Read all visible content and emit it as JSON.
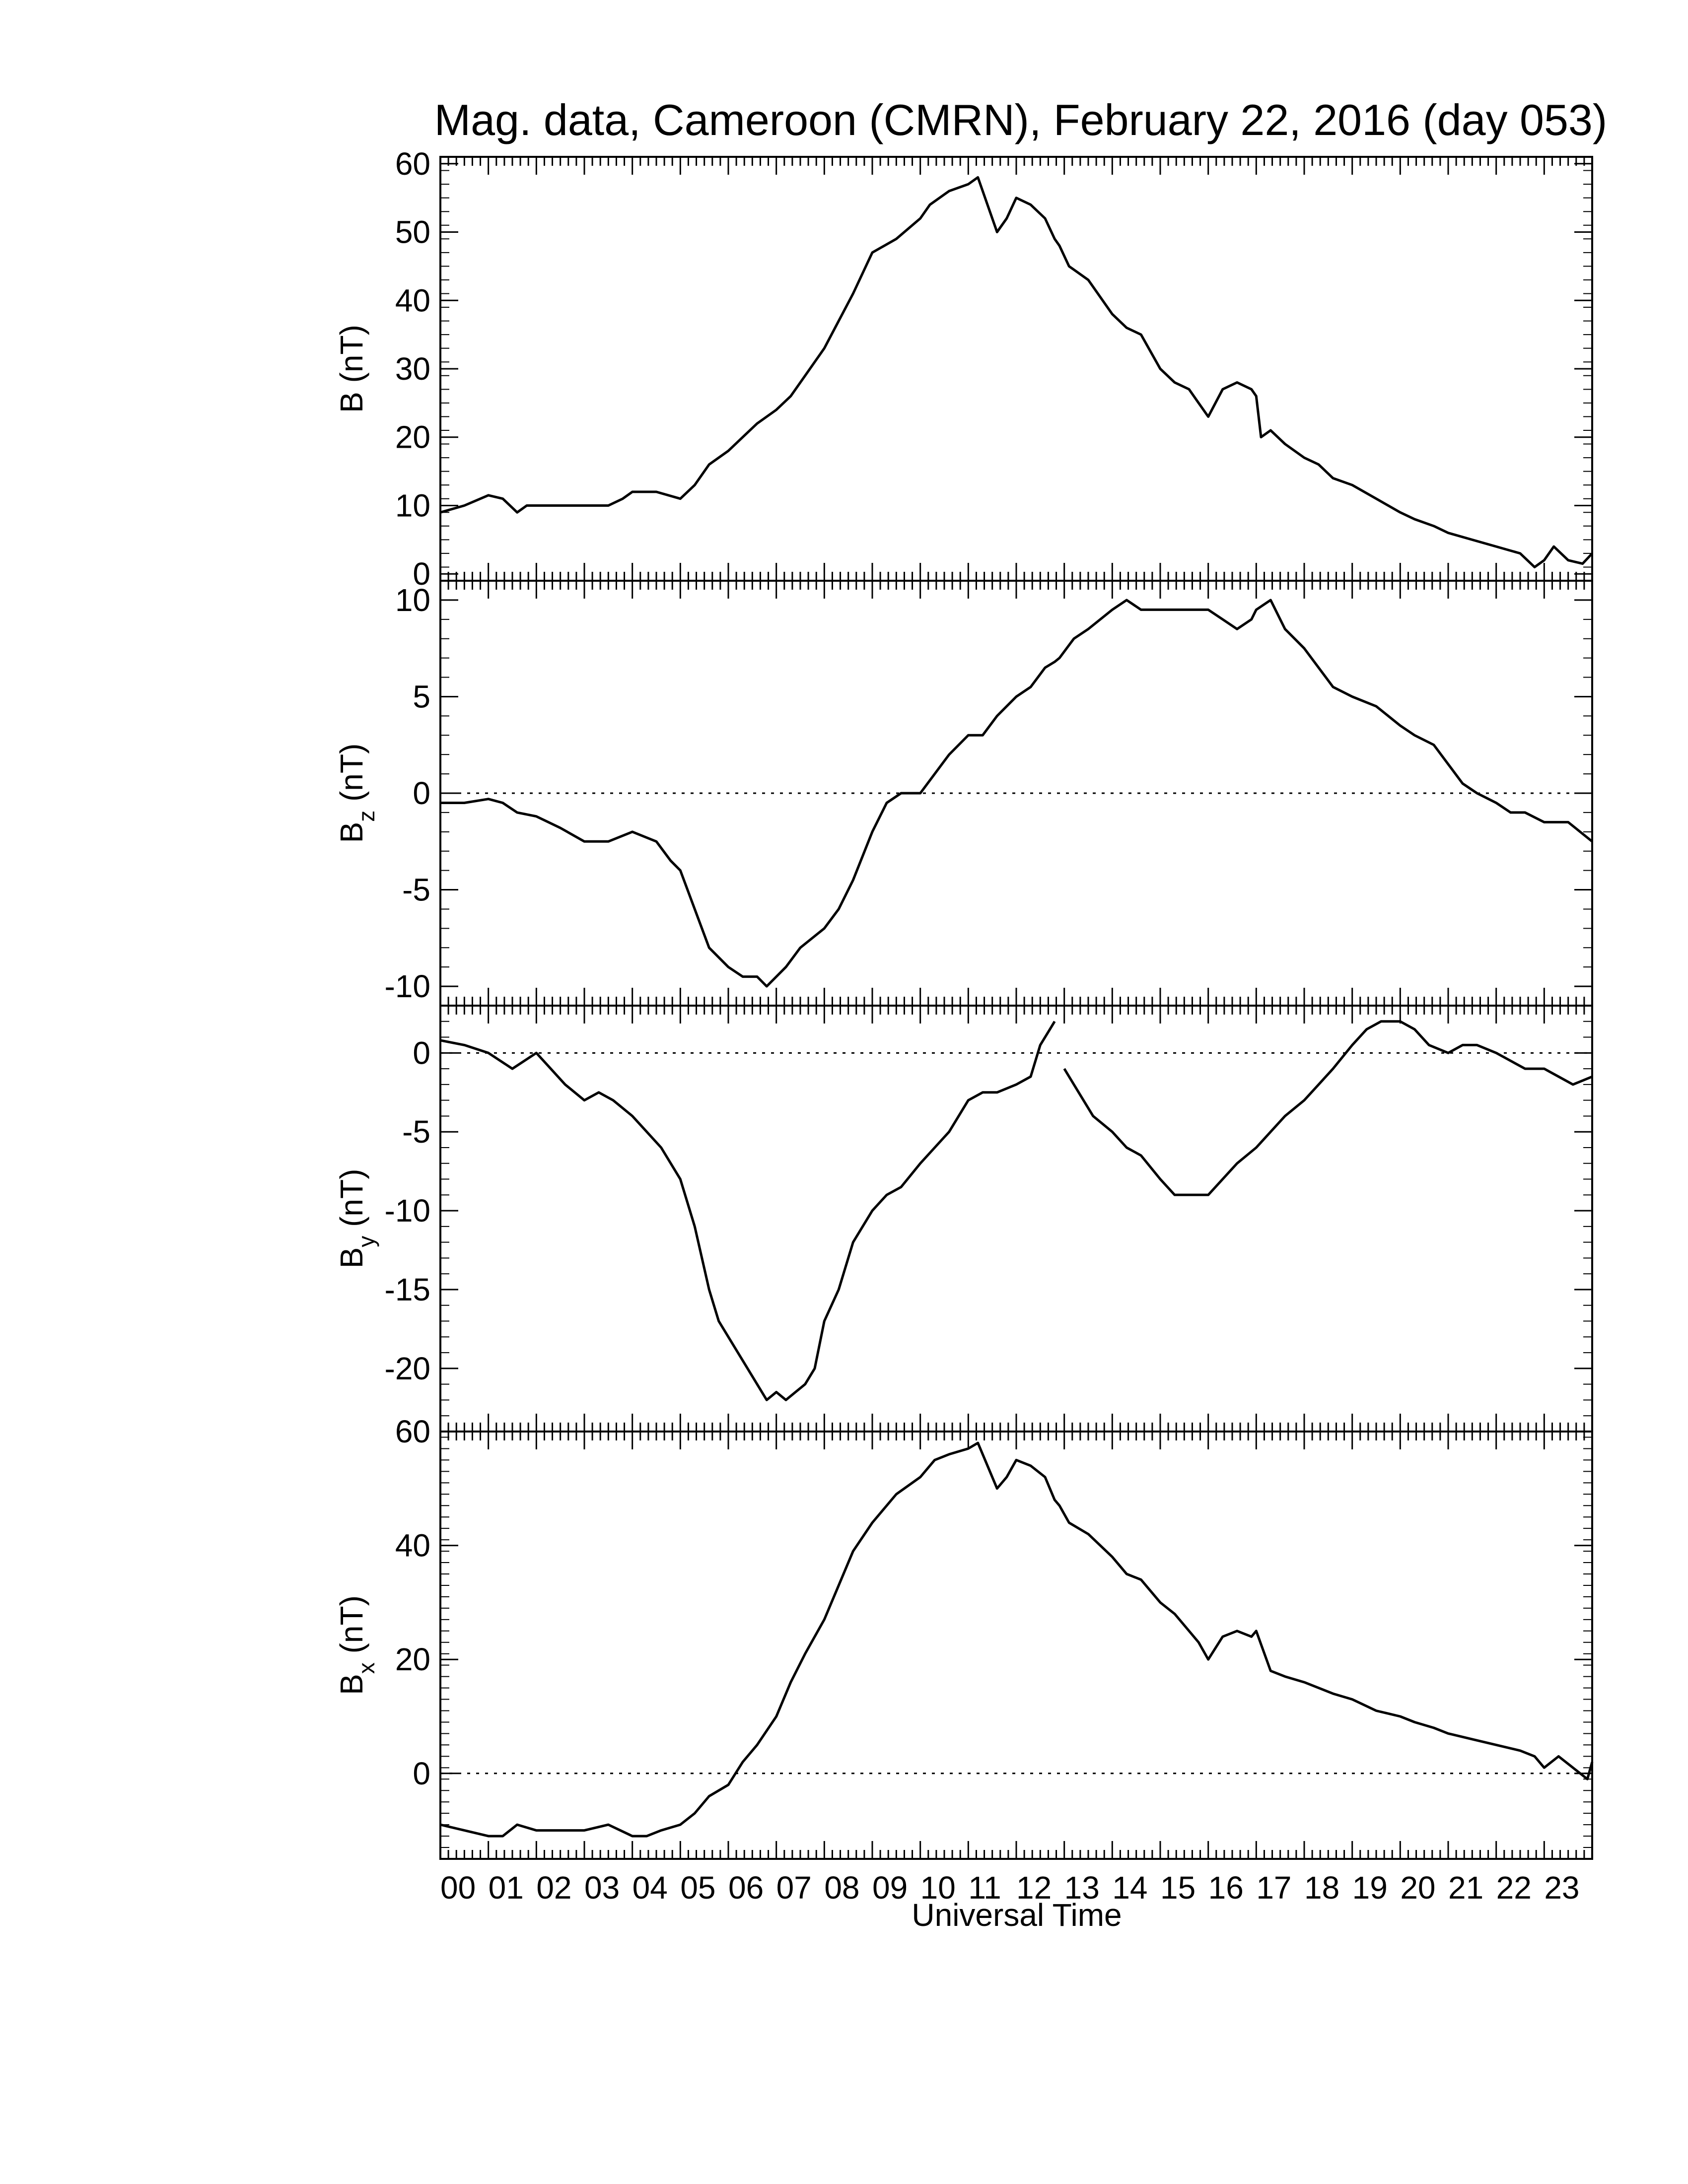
{
  "title": "Mag. data, Cameroon (CMRN), February 22, 2016 (day 053)",
  "xlabel": "Universal Time",
  "x_tick_labels": [
    "00",
    "01",
    "02",
    "03",
    "04",
    "05",
    "06",
    "07",
    "08",
    "09",
    "10",
    "11",
    "12",
    "13",
    "14",
    "15",
    "16",
    "17",
    "18",
    "19",
    "20",
    "21",
    "22",
    "23"
  ],
  "chart_data": [
    {
      "type": "line",
      "panel": "B",
      "ylabel": "B (nT)",
      "xlim": [
        0,
        24
      ],
      "ylim": [
        -1,
        61
      ],
      "yticks": [
        0,
        10,
        20,
        30,
        40,
        50,
        60
      ],
      "zero_line": false,
      "series": [
        {
          "x": [
            0,
            0.5,
            1,
            1.3,
            1.6,
            1.8,
            2,
            2.5,
            3,
            3.5,
            3.8,
            4,
            4.5,
            5,
            5.3,
            5.6,
            6,
            6.3,
            6.6,
            7,
            7.3,
            7.6,
            8,
            8.3,
            8.6,
            9,
            9.5,
            10,
            10.2,
            10.6,
            11,
            11.2,
            11.4,
            11.6,
            11.8,
            12,
            12.3,
            12.6,
            12.8,
            12.9,
            13.1,
            13.5,
            14,
            14.3,
            14.6,
            15,
            15.3,
            15.6,
            15.8,
            16,
            16.3,
            16.6,
            16.9,
            17,
            17.1,
            17.3,
            17.6,
            18,
            18.3,
            18.6,
            19,
            19.5,
            20,
            20.3,
            20.7,
            21,
            21.5,
            22,
            22.5,
            22.8,
            23,
            23.2,
            23.5,
            23.8,
            24
          ],
          "y": [
            9,
            10,
            11.5,
            11,
            9,
            10,
            10,
            10,
            10,
            10,
            11,
            12,
            12,
            11,
            13,
            16,
            18,
            20,
            22,
            24,
            26,
            29,
            33,
            37,
            41,
            47,
            49,
            52,
            54,
            56,
            57,
            58,
            54,
            50,
            52,
            55,
            54,
            52,
            49,
            48,
            45,
            43,
            38,
            36,
            35,
            30,
            28,
            27,
            25,
            23,
            27,
            28,
            27,
            26,
            20,
            21,
            19,
            17,
            16,
            14,
            13,
            11,
            9,
            8,
            7,
            6,
            5,
            4,
            3,
            1,
            2,
            4,
            2,
            1.5,
            3
          ]
        }
      ]
    },
    {
      "type": "line",
      "panel": "Bz",
      "ylabel": "B",
      "ylabel_subscript": "z",
      "ylabel_unit": "(nT)",
      "xlim": [
        0,
        24
      ],
      "ylim": [
        -11,
        11
      ],
      "yticks": [
        -10,
        -5,
        0,
        5,
        10
      ],
      "zero_line": true,
      "series": [
        {
          "x": [
            0,
            0.5,
            1,
            1.3,
            1.6,
            2,
            2.5,
            3,
            3.5,
            4,
            4.5,
            4.8,
            5,
            5.3,
            5.6,
            6,
            6.3,
            6.6,
            6.8,
            7,
            7.2,
            7.5,
            8,
            8.3,
            8.6,
            9,
            9.3,
            9.6,
            10,
            10.3,
            10.6,
            11,
            11.3,
            11.6,
            12,
            12.3,
            12.6,
            12.8,
            12.9,
            13.2,
            13.5,
            14,
            14.3,
            14.6,
            15,
            15.3,
            15.6,
            16,
            16.3,
            16.6,
            16.9,
            17,
            17.3,
            17.6,
            18,
            18.3,
            18.6,
            19,
            19.5,
            20,
            20.3,
            20.7,
            21,
            21.3,
            21.6,
            22,
            22.3,
            22.6,
            23,
            23.5,
            24
          ],
          "y": [
            -0.5,
            -0.5,
            -0.3,
            -0.5,
            -1,
            -1.2,
            -1.8,
            -2.5,
            -2.5,
            -2,
            -2.5,
            -3.5,
            -4,
            -6,
            -8,
            -9,
            -9.5,
            -9.5,
            -10,
            -9.5,
            -9,
            -8,
            -7,
            -6,
            -4.5,
            -2,
            -0.5,
            0,
            0,
            1,
            2,
            3,
            3,
            4,
            5,
            5.5,
            6.5,
            6.8,
            7,
            8,
            8.5,
            9.5,
            10,
            9.5,
            9.5,
            9.5,
            9.5,
            9.5,
            9,
            8.5,
            9,
            9.5,
            10,
            8.5,
            7.5,
            6.5,
            5.5,
            5,
            4.5,
            3.5,
            3,
            2.5,
            1.5,
            0.5,
            0,
            -0.5,
            -1,
            -1,
            -1.5,
            -1.5,
            -2.5
          ]
        }
      ]
    },
    {
      "type": "line",
      "panel": "By",
      "ylabel": "B",
      "ylabel_subscript": "y",
      "ylabel_unit": "(nT)",
      "xlim": [
        0,
        24
      ],
      "ylim": [
        -24,
        3
      ],
      "yticks": [
        -20,
        -15,
        -10,
        -5,
        0
      ],
      "zero_line": true,
      "series": [
        {
          "x": [
            0,
            0.5,
            1,
            1.5,
            2,
            2.3,
            2.6,
            3,
            3.3,
            3.6,
            4,
            4.3,
            4.6,
            5,
            5.3,
            5.6,
            5.8,
            6,
            6.2,
            6.4,
            6.6,
            6.8,
            7,
            7.2,
            7.4,
            7.6,
            7.8,
            8,
            8.3,
            8.6,
            9,
            9.3,
            9.6,
            10,
            10.3,
            10.6,
            11,
            11.3,
            11.6,
            12,
            12.3,
            12.5,
            12.7,
            12.8
          ],
          "y": [
            0.8,
            0.5,
            0,
            -1,
            0,
            -1,
            -2,
            -3,
            -2.5,
            -3,
            -4,
            -5,
            -6,
            -8,
            -11,
            -15,
            -17,
            -18,
            -19,
            -20,
            -21,
            -22,
            -21.5,
            -22,
            -21.5,
            -21,
            -20,
            -17,
            -15,
            -12,
            -10,
            -9,
            -8.5,
            -7,
            -6,
            -5,
            -3,
            -2.5,
            -2.5,
            -2,
            -1.5,
            0.5,
            1.5,
            2
          ]
        },
        {
          "x": [
            13,
            13.3,
            13.6,
            14,
            14.3,
            14.6,
            15,
            15.3,
            15.6,
            16,
            16.3,
            16.6,
            17,
            17.3,
            17.6,
            18,
            18.3,
            18.6,
            19,
            19.3,
            19.6,
            20,
            20.3,
            20.6,
            21,
            21.3,
            21.6,
            22,
            22.3,
            22.6,
            23,
            23.3,
            23.6,
            24
          ],
          "y": [
            -1,
            -2.5,
            -4,
            -5,
            -6,
            -6.5,
            -8,
            -9,
            -9,
            -9,
            -8,
            -7,
            -6,
            -5,
            -4,
            -3,
            -2,
            -1,
            0.5,
            1.5,
            2,
            2,
            1.5,
            0.5,
            0,
            0.5,
            0.5,
            0,
            -0.5,
            -1,
            -1,
            -1.5,
            -2,
            -1.5
          ]
        }
      ]
    },
    {
      "type": "line",
      "panel": "Bx",
      "ylabel": "B",
      "ylabel_subscript": "x",
      "ylabel_unit": "(nT)",
      "xlim": [
        0,
        24
      ],
      "ylim": [
        -15,
        60
      ],
      "yticks": [
        0,
        20,
        40,
        60
      ],
      "zero_line": true,
      "series": [
        {
          "x": [
            0,
            0.5,
            1,
            1.3,
            1.6,
            2,
            2.5,
            3,
            3.5,
            4,
            4.3,
            4.6,
            5,
            5.3,
            5.6,
            6,
            6.3,
            6.6,
            7,
            7.3,
            7.6,
            8,
            8.3,
            8.6,
            9,
            9.5,
            10,
            10.3,
            10.6,
            11,
            11.2,
            11.4,
            11.6,
            11.8,
            12,
            12.3,
            12.6,
            12.8,
            12.9,
            13.1,
            13.5,
            14,
            14.3,
            14.6,
            15,
            15.3,
            15.6,
            15.8,
            16,
            16.3,
            16.6,
            16.9,
            17,
            17.3,
            17.6,
            18,
            18.3,
            18.6,
            19,
            19.5,
            20,
            20.3,
            20.7,
            21,
            21.5,
            22,
            22.5,
            22.8,
            23,
            23.3,
            23.6,
            23.9,
            24
          ],
          "y": [
            -9,
            -10,
            -11,
            -11,
            -9,
            -10,
            -10,
            -10,
            -9,
            -11,
            -11,
            -10,
            -9,
            -7,
            -4,
            -2,
            2,
            5,
            10,
            16,
            21,
            27,
            33,
            39,
            44,
            49,
            52,
            55,
            56,
            57,
            58,
            54,
            50,
            52,
            55,
            54,
            52,
            48,
            47,
            44,
            42,
            38,
            35,
            34,
            30,
            28,
            25,
            23,
            20,
            24,
            25,
            24,
            25,
            18,
            17,
            16,
            15,
            14,
            13,
            11,
            10,
            9,
            8,
            7,
            6,
            5,
            4,
            3,
            1,
            3,
            1,
            -1,
            2
          ]
        }
      ]
    }
  ]
}
